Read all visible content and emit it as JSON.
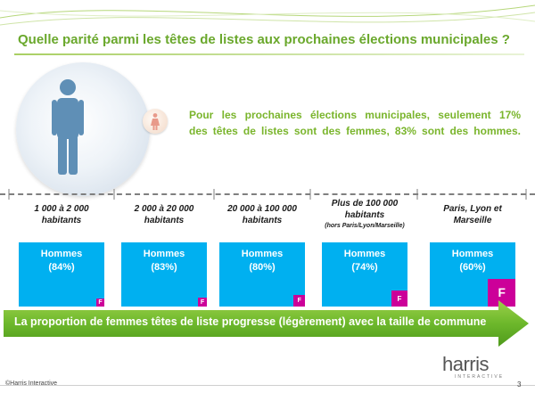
{
  "title": "Quelle parité parmi les têtes de listes aux prochaines élections municipales ?",
  "statement": {
    "line1": "Pour les prochaines élections municipales, seulement 17%",
    "line2": "des têtes de listes sont des femmes, 83% sont des hommes."
  },
  "chart_data": {
    "type": "bar",
    "categories": [
      {
        "line1": "1 000 à 2 000",
        "line2": "habitants",
        "note": ""
      },
      {
        "line1": "2 000 à 20 000",
        "line2": "habitants",
        "note": ""
      },
      {
        "line1": "20 000 à 100 000",
        "line2": "habitants",
        "note": ""
      },
      {
        "line1": "Plus de 100 000",
        "line2": "habitants",
        "note": "(hors Paris/Lyon/Marseille)"
      },
      {
        "line1": "Paris, Lyon et",
        "line2": "Marseille",
        "note": ""
      }
    ],
    "series": [
      {
        "name": "Hommes",
        "values": [
          84,
          83,
          80,
          74,
          60
        ],
        "labels": [
          "(84%)",
          "(83%)",
          "(80%)",
          "(74%)",
          "(60%)"
        ]
      },
      {
        "name": "F",
        "values": [
          16,
          17,
          20,
          26,
          40
        ]
      }
    ],
    "colors": {
      "hommes": "#00b0f0",
      "femmes": "#cc0099"
    }
  },
  "arrow_text": "La proportion de femmes têtes de liste progresse (légèrement) avec la taille de commune",
  "footer": {
    "copyright": "©Harris Interactive",
    "logo_main": "harris",
    "logo_sub": "INTERACTIVE",
    "page_number": "3"
  }
}
